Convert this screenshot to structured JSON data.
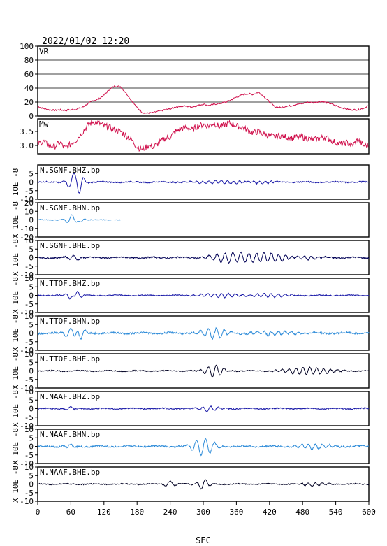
{
  "chart_data": {
    "type": "line",
    "title": "2022/01/02 12:20",
    "xlabel": "SEC",
    "xlim": [
      0,
      600
    ],
    "x_ticks": [
      "0",
      "60",
      "120",
      "180",
      "240",
      "300",
      "360",
      "420",
      "480",
      "540",
      "600"
    ],
    "panels": [
      {
        "name": "VR",
        "ylim": [
          0,
          100
        ],
        "y_ticks": [
          "0",
          "20",
          "40",
          "60",
          "80",
          "100"
        ],
        "gridlines": [
          20,
          40,
          60,
          80
        ],
        "color": "#d0104c",
        "x": [
          0,
          10,
          20,
          30,
          40,
          50,
          60,
          70,
          80,
          90,
          100,
          110,
          120,
          130,
          140,
          150,
          160,
          170,
          180,
          190,
          200,
          210,
          220,
          230,
          240,
          250,
          260,
          270,
          280,
          290,
          300,
          310,
          320,
          330,
          340,
          350,
          360,
          370,
          380,
          390,
          400,
          410,
          420,
          430,
          440,
          450,
          460,
          470,
          480,
          490,
          500,
          510,
          520,
          530,
          540,
          550,
          560,
          570,
          580,
          590,
          600
        ],
        "values": [
          14,
          11,
          9,
          8,
          9,
          8,
          9,
          10,
          12,
          17,
          22,
          24,
          30,
          38,
          43,
          42,
          33,
          22,
          12,
          5,
          4,
          5,
          7,
          9,
          10,
          13,
          14,
          14,
          13,
          15,
          17,
          15,
          17,
          18,
          20,
          23,
          27,
          30,
          32,
          31,
          34,
          28,
          20,
          13,
          12,
          14,
          15,
          17,
          18,
          20,
          19,
          21,
          20,
          18,
          15,
          12,
          10,
          9,
          9,
          11,
          15
        ]
      },
      {
        "name": "Mw",
        "ylim": [
          2.7,
          3.95
        ],
        "y_ticks": [
          "3.5",
          "3.0"
        ],
        "y_tick_values": [
          3.5,
          3.0
        ],
        "color": "#d0104c",
        "x": [
          0,
          10,
          20,
          30,
          40,
          50,
          60,
          70,
          80,
          90,
          100,
          110,
          120,
          130,
          140,
          150,
          160,
          170,
          180,
          190,
          200,
          210,
          220,
          230,
          240,
          250,
          260,
          270,
          280,
          290,
          300,
          310,
          320,
          330,
          340,
          350,
          360,
          370,
          380,
          390,
          400,
          410,
          420,
          430,
          440,
          450,
          460,
          470,
          480,
          490,
          500,
          510,
          520,
          530,
          540,
          550,
          560,
          570,
          580,
          590,
          600
        ],
        "values": [
          3.05,
          3.15,
          3.0,
          2.95,
          3.1,
          2.9,
          3.05,
          3.2,
          3.45,
          3.7,
          3.85,
          3.8,
          3.7,
          3.65,
          3.55,
          3.5,
          3.35,
          3.2,
          2.95,
          2.85,
          3.0,
          2.95,
          3.1,
          3.25,
          3.3,
          3.5,
          3.6,
          3.65,
          3.55,
          3.7,
          3.75,
          3.7,
          3.8,
          3.65,
          3.75,
          3.8,
          3.7,
          3.65,
          3.55,
          3.45,
          3.5,
          3.4,
          3.35,
          3.3,
          3.35,
          3.3,
          3.25,
          3.3,
          3.3,
          3.25,
          3.2,
          3.25,
          3.3,
          3.2,
          3.1,
          3.05,
          3.1,
          3.0,
          3.2,
          3.0,
          3.0
        ]
      }
    ],
    "traces": [
      {
        "label": "N.SGNF.BHZ.bp",
        "ylabel": "10E -8",
        "ylim": [
          -10,
          10
        ],
        "y_ticks": [
          "5",
          "0",
          "-5",
          "-10"
        ],
        "y_tick_values": [
          5,
          0,
          -5,
          -10
        ],
        "color": "#1a1aa8",
        "events": [
          {
            "t": 65,
            "amp": 4.5,
            "f": 0.055,
            "w": 14
          },
          {
            "t": 76,
            "amp": -4.5,
            "f": 0.06,
            "w": 8
          }
        ],
        "noise": 0.35,
        "late": [
          {
            "t": 330,
            "amp": 0.9,
            "w": 60,
            "f": 0.09
          },
          {
            "t": 400,
            "amp": 0.8,
            "w": 30,
            "f": 0.1
          }
        ]
      },
      {
        "label": "N.SGNF.BHN.bp",
        "ylabel": "X 10E -8",
        "ylim": [
          -20,
          20
        ],
        "y_ticks": [
          "20",
          "10",
          "0",
          "-10",
          "-20"
        ],
        "y_tick_values": [
          20,
          10,
          0,
          -10,
          -20
        ],
        "color": "#2b8ad8",
        "events": [
          {
            "t": 62,
            "amp": 6,
            "f": 0.055,
            "w": 12
          },
          {
            "t": 78,
            "amp": -3,
            "f": 0.06,
            "w": 8
          }
        ],
        "noise": 0.4,
        "late": [],
        "end": 150
      },
      {
        "label": "N.SGNF.BHE.bp",
        "ylabel": "X 10E -8",
        "ylim": [
          -10,
          10
        ],
        "y_ticks": [
          "10",
          "5",
          "0",
          "-5",
          "-10"
        ],
        "y_tick_values": [
          10,
          5,
          0,
          -5,
          -10
        ],
        "color": "#000055",
        "events": [
          {
            "t": 65,
            "amp": 1.5,
            "f": 0.06,
            "w": 14
          }
        ],
        "noise": 0.4,
        "late": [
          {
            "t": 350,
            "amp": 3,
            "w": 40,
            "f": 0.07
          },
          {
            "t": 420,
            "amp": 2.5,
            "w": 45,
            "f": 0.075
          },
          {
            "t": 480,
            "amp": 1.5,
            "w": 30,
            "f": 0.08
          }
        ]
      },
      {
        "label": "N.TTOF.BHZ.bp",
        "ylabel": "X 10E -8",
        "ylim": [
          -10,
          10
        ],
        "y_ticks": [
          "10",
          "5",
          "0",
          "-5",
          "-10"
        ],
        "y_tick_values": [
          10,
          5,
          0,
          -5,
          -10
        ],
        "color": "#1a1aa8",
        "events": [
          {
            "t": 58,
            "amp": -2,
            "f": 0.06,
            "w": 8
          },
          {
            "t": 72,
            "amp": 2.5,
            "f": 0.06,
            "w": 8
          }
        ],
        "noise": 0.3,
        "late": [
          {
            "t": 330,
            "amp": 1.2,
            "w": 40,
            "f": 0.08
          },
          {
            "t": 420,
            "amp": 1.0,
            "w": 40,
            "f": 0.08
          }
        ]
      },
      {
        "label": "N.TTOF.BHN.bp",
        "ylabel": "X 10E -8",
        "ylim": [
          -10,
          10
        ],
        "y_ticks": [
          "10",
          "5",
          "0",
          "-5",
          "-10"
        ],
        "y_tick_values": [
          10,
          5,
          0,
          -5,
          -10
        ],
        "color": "#2b8ad8",
        "events": [
          {
            "t": 60,
            "amp": 3,
            "f": 0.055,
            "w": 12
          },
          {
            "t": 78,
            "amp": -4,
            "f": 0.06,
            "w": 8
          }
        ],
        "noise": 0.5,
        "late": [
          {
            "t": 320,
            "amp": 3,
            "w": 25,
            "f": 0.07
          },
          {
            "t": 420,
            "amp": 1.2,
            "w": 50,
            "f": 0.08
          }
        ]
      },
      {
        "label": "N.TTOF.BHE.bp",
        "ylabel": "X 10E -8",
        "ylim": [
          -10,
          10
        ],
        "y_ticks": [
          "10",
          "5",
          "0",
          "-5",
          "-10"
        ],
        "y_tick_values": [
          10,
          5,
          0,
          -5,
          -10
        ],
        "color": "#000022",
        "events": [],
        "noise": 0.3,
        "late": [
          {
            "t": 320,
            "amp": 3.5,
            "w": 18,
            "f": 0.07
          },
          {
            "t": 490,
            "amp": 2,
            "w": 50,
            "f": 0.08
          }
        ]
      },
      {
        "label": "N.NAAF.BHZ.bp",
        "ylabel": "X 10E -8",
        "ylim": [
          -10,
          10
        ],
        "y_ticks": [
          "10",
          "5",
          "0",
          "-5",
          "-10"
        ],
        "y_tick_values": [
          10,
          5,
          0,
          -5,
          -10
        ],
        "color": "#1a1aa8",
        "events": [
          {
            "t": 60,
            "amp": 1,
            "f": 0.06,
            "w": 12
          }
        ],
        "noise": 0.35,
        "late": [
          {
            "t": 310,
            "amp": 1.5,
            "w": 20,
            "f": 0.07
          }
        ]
      },
      {
        "label": "N.NAAF.BHN.bp",
        "ylabel": "X 10E -8",
        "ylim": [
          -10,
          10
        ],
        "y_ticks": [
          "10",
          "5",
          "0",
          "-5",
          "-10"
        ],
        "y_tick_values": [
          10,
          5,
          0,
          -5,
          -10
        ],
        "color": "#2b8ad8",
        "events": [
          {
            "t": 60,
            "amp": 1,
            "f": 0.06,
            "w": 12
          }
        ],
        "noise": 0.45,
        "late": [
          {
            "t": 300,
            "amp": 5,
            "w": 22,
            "f": 0.06
          },
          {
            "t": 500,
            "amp": 1.5,
            "w": 35,
            "f": 0.08
          }
        ]
      },
      {
        "label": "N.NAAF.BHE.bp",
        "ylabel": "X 10E -8",
        "ylim": [
          -10,
          10
        ],
        "y_ticks": [
          "10",
          "5",
          "0",
          "-5",
          "-10"
        ],
        "y_tick_values": [
          10,
          5,
          0,
          -5,
          -10
        ],
        "color": "#000022",
        "events": [
          {
            "t": 240,
            "amp": 2,
            "f": 0.05,
            "w": 10
          }
        ],
        "noise": 0.3,
        "late": [
          {
            "t": 300,
            "amp": 3,
            "w": 12,
            "f": 0.06
          },
          {
            "t": 500,
            "amp": 1,
            "w": 25,
            "f": 0.08
          }
        ]
      }
    ]
  }
}
